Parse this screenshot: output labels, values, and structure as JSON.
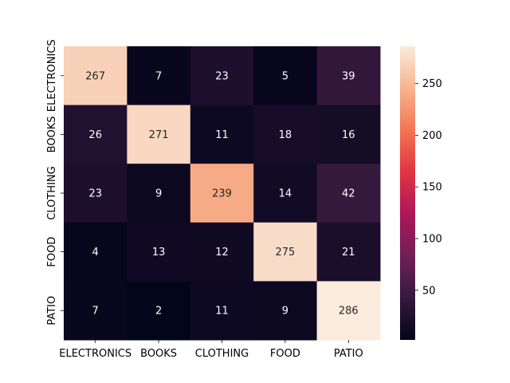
{
  "chart_data": {
    "type": "heatmap",
    "x_categories": [
      "ELECTRONICS",
      "BOOKS",
      "CLOTHING",
      "FOOD",
      "PATIO"
    ],
    "y_categories": [
      "ELECTRONICS",
      "BOOKS",
      "CLOTHING",
      "FOOD",
      "PATIO"
    ],
    "values": [
      [
        267,
        7,
        23,
        5,
        39
      ],
      [
        26,
        271,
        11,
        18,
        16
      ],
      [
        23,
        9,
        239,
        14,
        42
      ],
      [
        4,
        13,
        12,
        275,
        21
      ],
      [
        7,
        2,
        11,
        9,
        286
      ]
    ],
    "title": "",
    "xlabel": "",
    "ylabel": "",
    "colorbar": {
      "min": 2,
      "max": 286,
      "ticks": [
        50,
        100,
        150,
        200,
        250
      ]
    },
    "colormap": "rocket",
    "colormap_stops": [
      "#03051a",
      "#36193e",
      "#701f57",
      "#ad1759",
      "#e13342",
      "#f37651",
      "#f6b48f",
      "#faebdd"
    ],
    "annotation_color_light": "#ffffff",
    "annotation_color_dark": "#262626"
  }
}
